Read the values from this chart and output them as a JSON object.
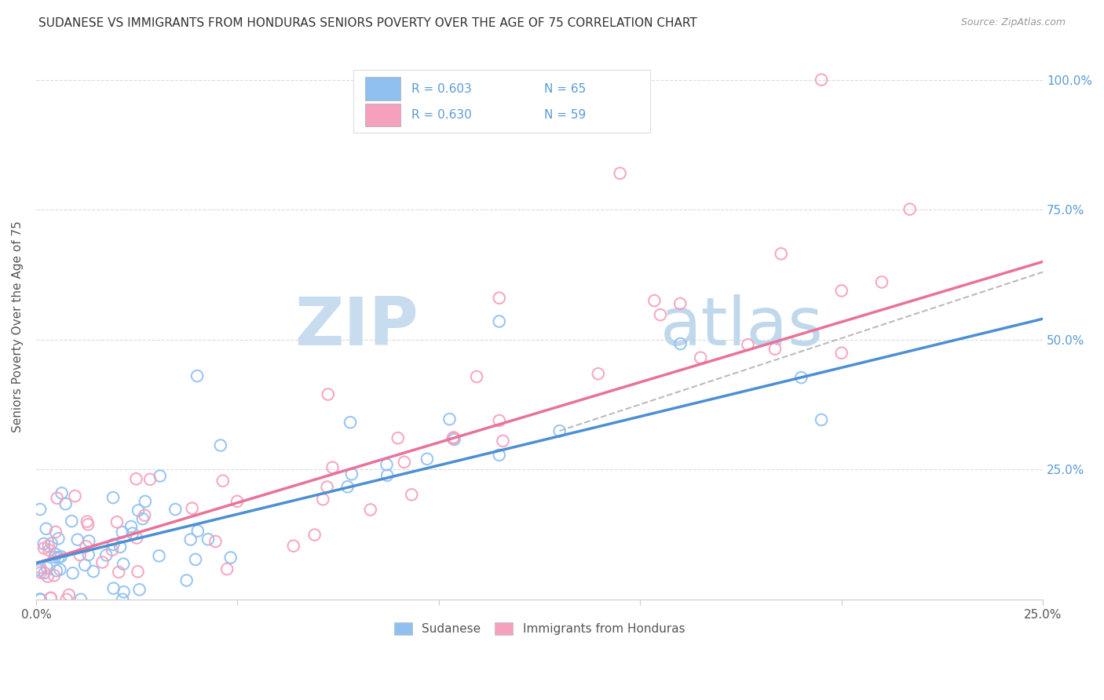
{
  "title": "SUDANESE VS IMMIGRANTS FROM HONDURAS SENIORS POVERTY OVER THE AGE OF 75 CORRELATION CHART",
  "source": "Source: ZipAtlas.com",
  "ylabel": "Seniors Poverty Over the Age of 75",
  "xlim": [
    0.0,
    0.25
  ],
  "ylim": [
    0.0,
    1.05
  ],
  "sudanese_color": "#90C0F0",
  "honduras_color": "#F5A0BC",
  "sudanese_R": 0.603,
  "sudanese_N": 65,
  "honduras_R": 0.63,
  "honduras_N": 59,
  "sudanese_line_color": "#4B8FD4",
  "honduras_line_color": "#E8729A",
  "background_color": "#FFFFFF",
  "grid_color": "#CCCCCC",
  "right_yticklabels_color": "#5B9BD5",
  "title_color": "#333333",
  "source_color": "#999999",
  "legend_border_color": "#DDDDDD",
  "watermark_zip_color": "#C8DCF0",
  "watermark_atlas_color": "#C0D8EC"
}
